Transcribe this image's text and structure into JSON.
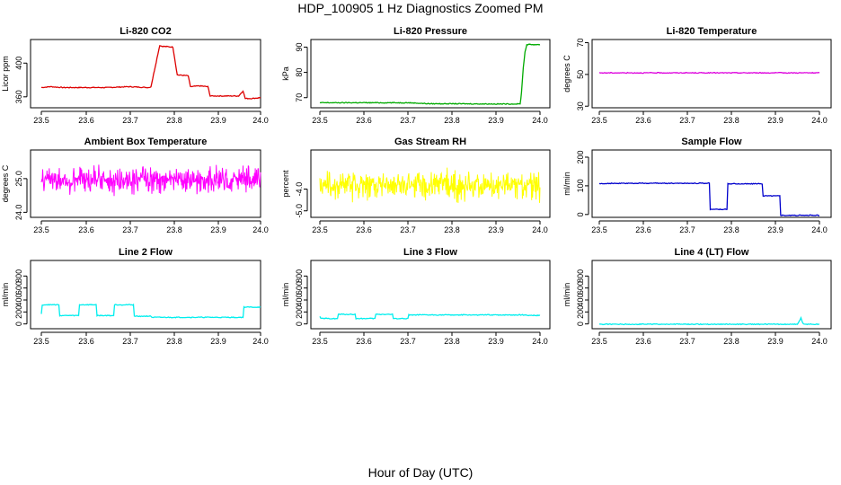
{
  "figure": {
    "title": "HDP_100905  1 Hz Diagnostics Zoomed PM",
    "xlabel": "Hour of Day (UTC)"
  },
  "chart_data": [
    {
      "type": "line",
      "title": "Li-820 CO2",
      "ylabel": "Licor ppm",
      "color": "#dd0000",
      "xlim": [
        23.5,
        24.0
      ],
      "ylim": [
        347,
        428
      ],
      "xticks": [
        "23.5",
        "23.6",
        "23.7",
        "23.8",
        "23.9",
        "24.0"
      ],
      "yticks": [
        {
          "v": 360,
          "label": "360"
        },
        {
          "v": 400,
          "label": "400"
        }
      ],
      "x": [
        23.5,
        23.52,
        23.55,
        23.6,
        23.65,
        23.7,
        23.745,
        23.75,
        23.77,
        23.775,
        23.8,
        23.81,
        23.835,
        23.84,
        23.86,
        23.88,
        23.885,
        23.9,
        23.95,
        23.96,
        23.965,
        23.98,
        24.0
      ],
      "y": [
        371,
        372,
        371,
        371,
        371,
        372,
        371,
        372,
        421,
        420,
        419,
        386,
        385,
        372,
        373,
        372,
        361,
        361,
        361,
        367,
        358,
        358,
        359
      ]
    },
    {
      "type": "line",
      "title": "Li-820 Pressure",
      "ylabel": "kPa",
      "color": "#00aa00",
      "xlim": [
        23.5,
        24.0
      ],
      "ylim": [
        66,
        93
      ],
      "xticks": [
        "23.5",
        "23.6",
        "23.7",
        "23.8",
        "23.9",
        "24.0"
      ],
      "yticks": [
        {
          "v": 70,
          "label": "70"
        },
        {
          "v": 80,
          "label": "80"
        },
        {
          "v": 90,
          "label": "90"
        }
      ],
      "x": [
        23.5,
        23.6,
        23.7,
        23.75,
        23.8,
        23.9,
        23.955,
        23.958,
        23.962,
        23.966,
        23.97,
        23.98,
        24.0
      ],
      "y": [
        68,
        68,
        68,
        67.6,
        67.6,
        67.5,
        67.5,
        72,
        82,
        88,
        91,
        91,
        91
      ]
    },
    {
      "type": "line",
      "title": "Li-820 Temperature",
      "ylabel": "degrees C",
      "color": "#dd00dd",
      "xlim": [
        23.5,
        24.0
      ],
      "ylim": [
        29,
        72
      ],
      "xticks": [
        "23.5",
        "23.6",
        "23.7",
        "23.8",
        "23.9",
        "24.0"
      ],
      "yticks": [
        {
          "v": 30,
          "label": "30"
        },
        {
          "v": 50,
          "label": "50"
        },
        {
          "v": 70,
          "label": "70"
        }
      ],
      "x": [
        23.5,
        24.0
      ],
      "y": [
        51,
        51
      ]
    },
    {
      "type": "line",
      "title": "Ambient Box Temperature",
      "ylabel": "degrees C",
      "color": "#ff00ff",
      "xlim": [
        23.5,
        24.0
      ],
      "ylim": [
        23.85,
        25.85
      ],
      "xticks": [
        "23.5",
        "23.6",
        "23.7",
        "23.8",
        "23.9",
        "24.0"
      ],
      "yticks": [
        {
          "v": 24.0,
          "label": "24.0"
        },
        {
          "v": 25.0,
          "label": "25.0"
        }
      ],
      "noise": {
        "n": 500,
        "center": 24.97,
        "amplitude": 0.55
      },
      "x": [
        23.5,
        24.0
      ],
      "y": [
        24.97,
        24.97
      ]
    },
    {
      "type": "line",
      "title": "Gas Stream RH",
      "ylabel": "percent",
      "color": "#ffff00",
      "xlim": [
        23.5,
        24.0
      ],
      "ylim": [
        -5.3,
        -2.2
      ],
      "xticks": [
        "23.5",
        "23.6",
        "23.7",
        "23.8",
        "23.9",
        "24.0"
      ],
      "yticks": [
        {
          "v": -5.0,
          "label": "-5.0"
        },
        {
          "v": -4.0,
          "label": "-4.0"
        }
      ],
      "noise": {
        "n": 500,
        "center": -3.85,
        "amplitude": 0.9
      },
      "x": [
        23.5,
        24.0
      ],
      "y": [
        -3.85,
        -3.85
      ]
    },
    {
      "type": "line",
      "title": "Sample Flow",
      "ylabel": "ml/min",
      "color": "#0000cc",
      "xlim": [
        23.5,
        24.0
      ],
      "ylim": [
        -10,
        225
      ],
      "xticks": [
        "23.5",
        "23.6",
        "23.7",
        "23.8",
        "23.9",
        "24.0"
      ],
      "yticks": [
        {
          "v": 0,
          "label": "0"
        },
        {
          "v": 100,
          "label": "100"
        },
        {
          "v": 200,
          "label": "200"
        }
      ],
      "x": [
        23.5,
        23.6,
        23.75,
        23.752,
        23.79,
        23.792,
        23.87,
        23.872,
        23.91,
        23.912,
        24.0
      ],
      "y": [
        108,
        109,
        109,
        18,
        18,
        107,
        107,
        65,
        65,
        -3,
        -3
      ]
    },
    {
      "type": "line",
      "title": "Line 2 Flow",
      "ylabel": "ml/min",
      "color": "#00eeee",
      "xlim": [
        23.5,
        24.0
      ],
      "ylim": [
        -80,
        1060
      ],
      "xticks": [
        "23.5",
        "23.6",
        "23.7",
        "23.8",
        "23.9",
        "24.0"
      ],
      "yticks": [
        {
          "v": 0,
          "label": "0"
        },
        {
          "v": 200,
          "label": "200"
        },
        {
          "v": 400,
          "label": "400"
        },
        {
          "v": 600,
          "label": "600"
        },
        {
          "v": 800,
          "label": "800"
        }
      ],
      "x": [
        23.5,
        23.502,
        23.54,
        23.542,
        23.585,
        23.587,
        23.625,
        23.627,
        23.665,
        23.667,
        23.71,
        23.712,
        23.75,
        23.752,
        23.96,
        23.962,
        24.0
      ],
      "y": [
        160,
        320,
        320,
        140,
        140,
        320,
        320,
        140,
        140,
        320,
        320,
        130,
        130,
        110,
        110,
        280,
        280
      ]
    },
    {
      "type": "line",
      "title": "Line 3 Flow",
      "ylabel": "ml/min",
      "color": "#00eeee",
      "xlim": [
        23.5,
        24.0
      ],
      "ylim": [
        -80,
        1060
      ],
      "xticks": [
        "23.5",
        "23.6",
        "23.7",
        "23.8",
        "23.9",
        "24.0"
      ],
      "yticks": [
        {
          "v": 0,
          "label": "0"
        },
        {
          "v": 200,
          "label": "200"
        },
        {
          "v": 400,
          "label": "400"
        },
        {
          "v": 600,
          "label": "600"
        },
        {
          "v": 800,
          "label": "800"
        }
      ],
      "x": [
        23.5,
        23.502,
        23.54,
        23.542,
        23.58,
        23.582,
        23.625,
        23.627,
        23.665,
        23.667,
        23.7,
        23.702,
        23.96,
        24.0
      ],
      "y": [
        130,
        90,
        90,
        160,
        160,
        90,
        90,
        160,
        160,
        90,
        90,
        150,
        150,
        140
      ]
    },
    {
      "type": "line",
      "title": "Line 4 (LT) Flow",
      "ylabel": "ml/min",
      "color": "#00eeee",
      "xlim": [
        23.5,
        24.0
      ],
      "ylim": [
        -80,
        1060
      ],
      "xticks": [
        "23.5",
        "23.6",
        "23.7",
        "23.8",
        "23.9",
        "24.0"
      ],
      "yticks": [
        {
          "v": 0,
          "label": "0"
        },
        {
          "v": 200,
          "label": "200"
        },
        {
          "v": 400,
          "label": "400"
        },
        {
          "v": 600,
          "label": "600"
        },
        {
          "v": 800,
          "label": "800"
        }
      ],
      "x": [
        23.5,
        23.95,
        23.955,
        23.958,
        23.961,
        23.964,
        24.0
      ],
      "y": [
        -5,
        -5,
        60,
        100,
        30,
        -5,
        -5
      ]
    }
  ]
}
